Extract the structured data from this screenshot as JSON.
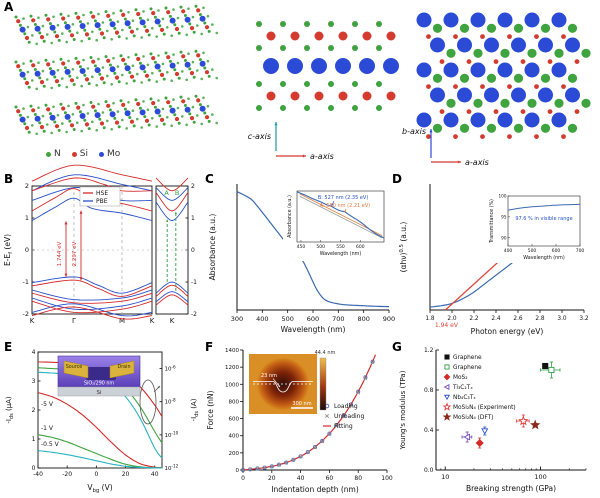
{
  "panel_labels": {
    "A": "A",
    "B": "B",
    "C": "C",
    "D": "D",
    "E": "E",
    "F": "F",
    "G": "G"
  },
  "colors": {
    "N": "#3fa33f",
    "Si": "#d23b2e",
    "Mo": "#2b4bd7",
    "c_axis": "#1a9aa0",
    "a_axis": "#d23b2e",
    "b_axis": "#2b4bd7"
  },
  "panelA": {
    "legend": [
      {
        "label": "N",
        "color": "#3fa33f"
      },
      {
        "label": "Si",
        "color": "#d23b2e"
      },
      {
        "label": "Mo",
        "color": "#2b4bd7"
      }
    ],
    "mid_axes": {
      "vertical": "c-axis",
      "horizontal": "a-axis"
    },
    "right_axes": {
      "vertical": "b-axis",
      "horizontal": "a-axis"
    }
  },
  "chart_data": [
    {
      "panel": "B",
      "type": "line",
      "kind": "band-structure",
      "ylabel_parts": {
        "pre": "E-E",
        "sub": "f",
        "post": " (eV)"
      },
      "ylim": [
        -2,
        2
      ],
      "yticks": [
        -2,
        -1,
        0,
        1,
        2
      ],
      "xticklabels": [
        "K",
        "Γ",
        "M",
        "K"
      ],
      "xtickpos": [
        0,
        0.35,
        0.75,
        1
      ],
      "legend": [
        {
          "label": "HSE",
          "color": "#d42a2a"
        },
        {
          "label": "PBE",
          "color": "#2850c8"
        }
      ],
      "gap_labels": [
        {
          "text": "1.744 eV",
          "color": "#d42a2a"
        },
        {
          "text": "2.297 eV",
          "color": "#d42a2a"
        }
      ],
      "series": [
        {
          "name": "PBE",
          "color": "#2850c8",
          "cshift": 0,
          "vshift": 0
        },
        {
          "name": "HSE",
          "color": "#d42a2a",
          "cshift": 0.3,
          "vshift": -0.1
        }
      ],
      "bands": {
        "conduction": [
          [
            [
              0,
              0.92
            ],
            [
              0.2,
              1.35
            ],
            [
              0.35,
              1.62
            ],
            [
              0.5,
              1.3
            ],
            [
              0.75,
              1.15
            ],
            [
              1,
              0.92
            ]
          ],
          [
            [
              0,
              1.55
            ],
            [
              0.35,
              1.95
            ],
            [
              0.6,
              1.75
            ],
            [
              0.75,
              1.55
            ],
            [
              1,
              1.55
            ]
          ],
          [
            [
              0,
              1.85
            ],
            [
              0.35,
              2.35
            ],
            [
              0.75,
              2.05
            ],
            [
              1,
              1.85
            ]
          ]
        ],
        "valence": [
          [
            [
              0,
              -1.02
            ],
            [
              0.35,
              -0.84
            ],
            [
              0.55,
              -1.1
            ],
            [
              0.75,
              -1.35
            ],
            [
              1,
              -1.02
            ]
          ],
          [
            [
              0,
              -1.25
            ],
            [
              0.35,
              -1.55
            ],
            [
              0.75,
              -1.5
            ],
            [
              1,
              -1.25
            ]
          ],
          [
            [
              0,
              -1.5
            ],
            [
              0.35,
              -1.85
            ],
            [
              0.75,
              -1.75
            ],
            [
              1,
              -1.5
            ]
          ],
          [
            [
              0,
              -1.95
            ],
            [
              0.35,
              -1.68
            ],
            [
              0.75,
              -2.05
            ],
            [
              1,
              -1.95
            ]
          ]
        ]
      },
      "sub": {
        "xticklabel": "K",
        "transitions": [
          "A",
          "B"
        ],
        "arrow_color": "#2f9e44",
        "bands": {
          "conduction": [
            [
              [
                0,
                1.5
              ],
              [
                0.5,
                0.92
              ],
              [
                1,
                1.5
              ]
            ],
            [
              [
                0,
                1.95
              ],
              [
                0.5,
                1.55
              ],
              [
                1,
                1.95
              ]
            ]
          ],
          "valence": [
            [
              [
                0,
                -1.35
              ],
              [
                0.5,
                -1.0
              ],
              [
                1,
                -1.35
              ]
            ],
            [
              [
                0,
                -1.62
              ],
              [
                0.5,
                -1.3
              ],
              [
                1,
                -1.62
              ]
            ]
          ]
        }
      }
    },
    {
      "panel": "C",
      "type": "line",
      "xlabel": "Wavelength (nm)",
      "ylabel": "Absorbance (a.u.)",
      "color": "#3a6ab0",
      "xlim": [
        300,
        900
      ],
      "xticks": [
        300,
        400,
        500,
        600,
        700,
        800,
        900
      ],
      "x": [
        300,
        330,
        360,
        400,
        430,
        460,
        490,
        510,
        527,
        545,
        560,
        580,
        600,
        620,
        650,
        700,
        750,
        800,
        850,
        900
      ],
      "y": [
        0.97,
        0.94,
        0.9,
        0.8,
        0.72,
        0.64,
        0.56,
        0.51,
        0.47,
        0.43,
        0.4,
        0.32,
        0.23,
        0.15,
        0.08,
        0.05,
        0.04,
        0.035,
        0.03,
        0.028
      ],
      "inset": {
        "xlabel": "Wavelength (nm)",
        "ylabel": "Absorbance (a.u.)",
        "xticks": [
          450,
          500,
          550,
          600
        ],
        "x": [
          440,
          460,
          480,
          500,
          515,
          527,
          540,
          553,
          560,
          575,
          590,
          605,
          620,
          640,
          660
        ],
        "y": [
          0.67,
          0.63,
          0.585,
          0.545,
          0.51,
          0.49,
          0.455,
          0.43,
          0.425,
          0.375,
          0.33,
          0.28,
          0.22,
          0.15,
          0.1
        ],
        "baselines": [
          {
            "color": "#999999",
            "pts": [
              [
                447,
                0.615
              ],
              [
                655,
                0.1
              ]
            ]
          },
          {
            "color": "#e07b39",
            "pts": [
              [
                447,
                0.645
              ],
              [
                655,
                0.13
              ]
            ]
          }
        ],
        "annotations": [
          {
            "text": "B: 527 nm (2.35 eV)",
            "color": "#2850c8"
          },
          {
            "text": "A: 560 nm (2.21 eV)",
            "color": "#e07b39"
          }
        ]
      }
    },
    {
      "panel": "D",
      "type": "line",
      "xlabel": "Photon energy (eV)",
      "ylabel_parts": {
        "pre": "(αhν)",
        "sup": "0.5",
        "post": " (a.u.)"
      },
      "color": "#3a6ab0",
      "fit_color": "#e04438",
      "xlim": [
        1.8,
        3.2
      ],
      "xticks": [
        1.8,
        2.0,
        2.2,
        2.4,
        2.6,
        2.8,
        3.0,
        3.2
      ],
      "x": [
        1.8,
        1.9,
        2.0,
        2.1,
        2.2,
        2.3,
        2.4,
        2.5,
        2.6,
        2.7,
        2.8,
        2.9,
        3.0,
        3.1,
        3.2
      ],
      "y": [
        0.025,
        0.035,
        0.055,
        0.095,
        0.15,
        0.22,
        0.29,
        0.36,
        0.43,
        0.5,
        0.575,
        0.65,
        0.73,
        0.81,
        0.9
      ],
      "bandgap": {
        "label": "1.94 eV",
        "value": 1.94
      },
      "fit_line": {
        "x1": 1.94,
        "y1": 0,
        "x2": 2.45,
        "y2": 0.425
      },
      "inset": {
        "ylabel": "Transmittance (%)",
        "xlabel": "Wavelength (nm)",
        "color": "#3a6ab0",
        "xticks": [
          400,
          500,
          600,
          700
        ],
        "yticks": [
          90,
          95,
          100
        ],
        "ylim": [
          88,
          100
        ],
        "x": [
          400,
          450,
          500,
          550,
          600,
          650,
          700
        ],
        "y": [
          96.6,
          97.1,
          97.4,
          97.6,
          97.8,
          97.9,
          98.0
        ],
        "annotation": {
          "text": "97.6 % in visible range",
          "color": "#2850c8"
        }
      }
    },
    {
      "panel": "E",
      "type": "line",
      "kind": "transfer-curves",
      "xlabel_parts": {
        "pre": "V",
        "sub": "bg",
        "post": " (V)"
      },
      "ylabel_left_parts": {
        "pre": "-I",
        "sub": "ds",
        "post": " (μA)"
      },
      "ylabel_right_parts": {
        "pre": "-I",
        "sub": "ds",
        "post": " (A)"
      },
      "xlim": [
        -40,
        45
      ],
      "xticks": [
        -40,
        -20,
        0,
        20,
        40
      ],
      "ylim_left": [
        0,
        4
      ],
      "yticks_left": [
        0,
        1,
        2,
        3,
        4
      ],
      "ylim_right_exp": [
        -12,
        -5
      ],
      "yticks_right_exp": [
        -6,
        -8,
        -10,
        -12
      ],
      "x": [
        -40,
        -30,
        -20,
        -10,
        0,
        10,
        20,
        30,
        40,
        45
      ],
      "series": [
        {
          "label": "-5 V",
          "color": "#d42a2a",
          "linear": [
            2.6,
            2.45,
            2.2,
            1.85,
            1.4,
            0.9,
            0.45,
            0.15,
            0.03,
            0.01
          ],
          "log10": [
            -5.6,
            -5.62,
            -5.66,
            -5.74,
            -5.86,
            -6.05,
            -6.4,
            -7.1,
            -8.2,
            -8.9
          ]
        },
        {
          "label": "-1 V",
          "color": "#3fa33f",
          "linear": [
            1.15,
            1.05,
            0.9,
            0.7,
            0.5,
            0.3,
            0.13,
            0.04,
            0.01,
            0.005
          ],
          "log10": [
            -5.95,
            -6.0,
            -6.05,
            -6.15,
            -6.3,
            -6.6,
            -7.2,
            -8.3,
            -9.8,
            -10.5
          ]
        },
        {
          "label": "-0.5 V",
          "color": "#27b3c0",
          "linear": [
            0.6,
            0.54,
            0.46,
            0.36,
            0.25,
            0.14,
            0.06,
            0.02,
            0.005,
            0.002
          ],
          "log10": [
            -6.22,
            -6.27,
            -6.34,
            -6.45,
            -6.62,
            -6.95,
            -7.7,
            -9.0,
            -10.8,
            -11.4
          ]
        }
      ],
      "inset": {
        "source": "Source",
        "drain": "Drain",
        "oxide": "SiO₂/290 nm",
        "substrate": "Si"
      }
    },
    {
      "panel": "F",
      "type": "scatter",
      "xlabel": "Indentation depth (nm)",
      "ylabel": "Force (nN)",
      "xlim": [
        0,
        100
      ],
      "xticks": [
        0,
        20,
        40,
        60,
        80,
        100
      ],
      "ylim": [
        0,
        1400
      ],
      "yticks": [
        0,
        200,
        400,
        600,
        800,
        1000,
        1200,
        1400
      ],
      "depth": [
        0,
        5,
        10,
        15,
        20,
        25,
        30,
        35,
        40,
        45,
        50,
        55,
        60,
        65,
        70,
        75,
        80,
        85,
        90
      ],
      "loading": [
        0,
        8,
        17,
        28,
        42,
        62,
        87,
        119,
        159,
        209,
        269,
        340,
        425,
        523,
        637,
        766,
        914,
        1080,
        1265
      ],
      "unloading": [
        0,
        7,
        16,
        26,
        40,
        59,
        84,
        115,
        155,
        204,
        263,
        333,
        417,
        514,
        627,
        755,
        902,
        1068,
        1255
      ],
      "fit": {
        "a": 1.5,
        "b": 0.00155
      },
      "legend": [
        {
          "label": "Loading",
          "marker": "circle",
          "color": "#4a62b8"
        },
        {
          "label": "Unloading",
          "marker": "cross",
          "color": "#909090"
        },
        {
          "label": "Fitting",
          "marker": "line",
          "color": "#d42a2a"
        }
      ],
      "inset": {
        "max_height": "44.4 nm",
        "dip": "23 nm",
        "scalebar": "300 nm"
      }
    },
    {
      "panel": "G",
      "type": "scatter",
      "xlabel": "Breaking strength (GPa)",
      "ylabel": "Young's modulus (TPa)",
      "xlog": true,
      "xlim": [
        8,
        300
      ],
      "xticks": [
        10,
        100
      ],
      "ylim": [
        0,
        1.2
      ],
      "yticks": [
        0.0,
        0.4,
        0.8,
        1.2
      ],
      "points": [
        {
          "label": "Graphene",
          "marker": "square",
          "color": "#111111",
          "open": false,
          "x": 112,
          "y": 1.04
        },
        {
          "label": "Graphene",
          "marker": "square",
          "color": "#2f9e44",
          "open": true,
          "x": 130,
          "y": 1.0,
          "xerr": 30,
          "yerr": 0.08
        },
        {
          "label": "MoS₂",
          "marker": "diamond",
          "color": "#d42a2a",
          "open": false,
          "x": 23,
          "y": 0.27,
          "yerr": 0.05
        },
        {
          "label": "Ti₃C₂Tₓ",
          "marker": "triangle-left",
          "color": "#7048b8",
          "open": true,
          "x": 17,
          "y": 0.33,
          "xerr": 2,
          "yerr": 0.05
        },
        {
          "label": "Nb₄C₃Tₓ",
          "marker": "triangle-down",
          "color": "#2850c8",
          "open": true,
          "x": 26,
          "y": 0.39,
          "yerr": 0.04
        },
        {
          "label": "MoSi₂N₄ (Experiment)",
          "marker": "star",
          "color": "#e03a3a",
          "open": true,
          "x": 66,
          "y": 0.49,
          "xerr": 10,
          "yerr": 0.06
        },
        {
          "label": "MoSi₂N₄ (DFT)",
          "marker": "star",
          "color": "#8a2b1e",
          "open": false,
          "x": 88,
          "y": 0.45
        }
      ]
    }
  ]
}
